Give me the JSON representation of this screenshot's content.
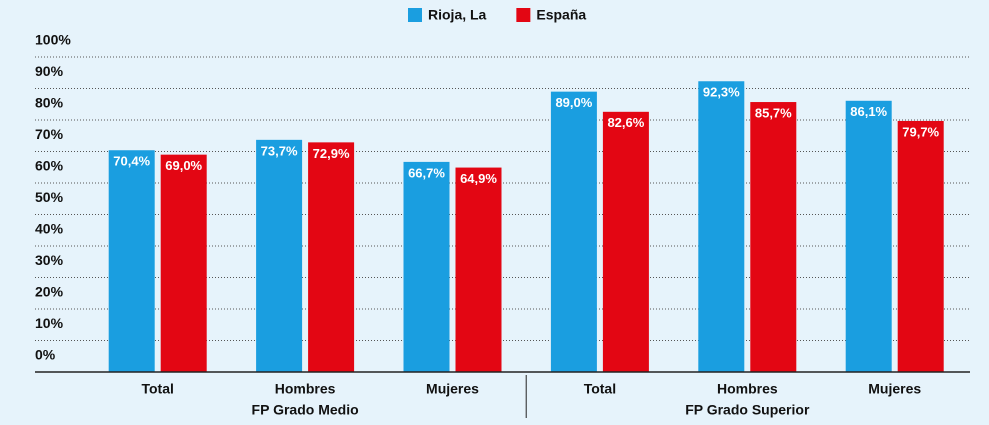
{
  "chart_data": {
    "type": "bar",
    "categories": [
      "Total",
      "Hombres",
      "Mujeres",
      "Total",
      "Hombres",
      "Mujeres"
    ],
    "category_groups": [
      "FP Grado Medio",
      "FP Grado Superior"
    ],
    "series": [
      {
        "name": "Rioja, La",
        "color": "#1a9ee0",
        "values": [
          70.4,
          73.7,
          66.7,
          89.0,
          92.3,
          86.1
        ],
        "value_labels": [
          "70,4%",
          "73,7%",
          "66,7%",
          "89,0%",
          "92,3%",
          "86,1%"
        ]
      },
      {
        "name": "España",
        "color": "#e30613",
        "values": [
          69.0,
          72.9,
          64.9,
          82.6,
          85.7,
          79.7
        ],
        "value_labels": [
          "69,0%",
          "72,9%",
          "64,9%",
          "82,6%",
          "85,7%",
          "79,7%"
        ]
      }
    ],
    "ylim": [
      0,
      100
    ],
    "yticks": [
      {
        "value": 0,
        "label": "0%"
      },
      {
        "value": 10,
        "label": "10%"
      },
      {
        "value": 20,
        "label": "20%"
      },
      {
        "value": 30,
        "label": "30%"
      },
      {
        "value": 40,
        "label": "40%"
      },
      {
        "value": 50,
        "label": "50%"
      },
      {
        "value": 60,
        "label": "60%"
      },
      {
        "value": 70,
        "label": "70%"
      },
      {
        "value": 80,
        "label": "80%"
      },
      {
        "value": 90,
        "label": "90%"
      },
      {
        "value": 100,
        "label": "100%"
      }
    ],
    "grid": true,
    "legend": "top"
  }
}
